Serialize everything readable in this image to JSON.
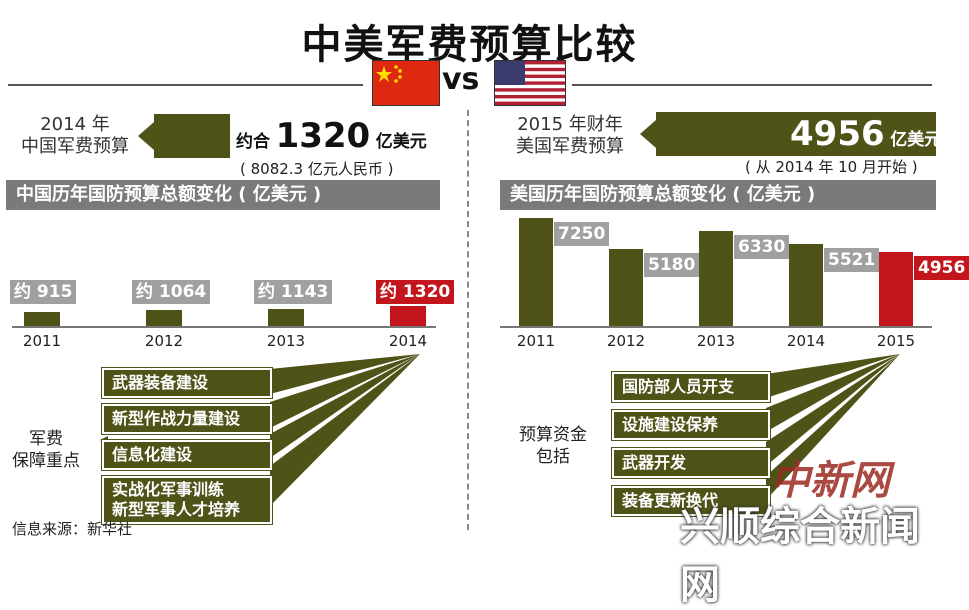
{
  "title": "中美军费预算比较",
  "vs": "vs",
  "china": {
    "budget_label_line1": "2014 年",
    "budget_label_line2": "中国军费预算",
    "budget_prefix": "约合",
    "budget_value": "1320",
    "budget_unit": "亿美元",
    "budget_note": "( 8082.3 亿元人民币 )",
    "section_title": "中国历年国防预算总额变化 ( 亿美元 )",
    "priority_title_line1": "军费",
    "priority_title_line2": "保障重点",
    "priorities": [
      "武器装备建设",
      "新型作战力量建设",
      "信息化建设",
      "实战化军事训练",
      "新型军事人才培养"
    ]
  },
  "usa": {
    "budget_label_line1": "2015 年财年",
    "budget_label_line2": "美国军费预算",
    "budget_value": "4956",
    "budget_unit": "亿美元",
    "budget_note": "( 从 2014 年 10 月开始 )",
    "section_title": "美国历年国防预算总额变化 ( 亿美元 )",
    "priority_title_line1": "预算资金",
    "priority_title_line2": "包括",
    "priorities": [
      "国防部人员开支",
      "设施建设保养",
      "武器开发",
      "装备更新换代"
    ]
  },
  "source": "信息来源：新华社",
  "watermark_text": "中新网",
  "watermark_overlay": "兴顺综合新闻网",
  "colors": {
    "olive": "#4f5318",
    "red": "#c2161c",
    "gray": "#7a7a7a"
  },
  "chart_data": [
    {
      "type": "bar",
      "title": "中国历年国防预算总额变化 ( 亿美元 )",
      "categories": [
        "2011",
        "2012",
        "2013",
        "2014"
      ],
      "values": [
        915,
        1064,
        1143,
        1320
      ],
      "data_labels": [
        "约 915",
        "约 1064",
        "约 1143",
        "约 1320"
      ],
      "highlight_index": 3,
      "ylim": [
        0,
        7500
      ]
    },
    {
      "type": "bar",
      "title": "美国历年国防预算总额变化 ( 亿美元 )",
      "categories": [
        "2011",
        "2012",
        "2013",
        "2014",
        "2015"
      ],
      "values": [
        7250,
        5180,
        6330,
        5521,
        4956
      ],
      "data_labels": [
        "7250",
        "5180",
        "6330",
        "5521",
        "4956"
      ],
      "highlight_index": 4,
      "ylim": [
        0,
        7500
      ]
    }
  ]
}
